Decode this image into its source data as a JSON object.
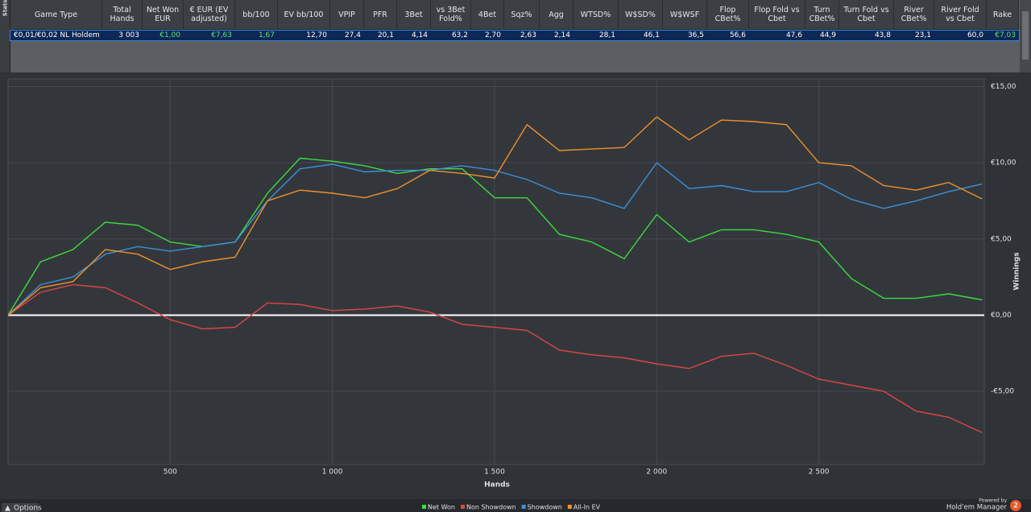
{
  "sidebar": {
    "label": "Stats"
  },
  "table": {
    "headers": [
      "Game Type",
      "Total Hands",
      "Net Won EUR",
      "€ EUR (EV adjusted)",
      "bb/100",
      "EV bb/100",
      "VPIP",
      "PFR",
      "3Bet",
      "vs 3Bet Fold%",
      "4Bet",
      "Sqz%",
      "Agg",
      "WTSD%",
      "W$SD%",
      "W$WSF",
      "Flop CBet%",
      "Flop Fold vs Cbet",
      "Turn CBet%",
      "Turn Fold vs Cbet",
      "River CBet%",
      "River Fold vs Cbet",
      "Rake"
    ],
    "rows": [
      [
        "€0,01/€0,02 NL Holdem",
        "3 003",
        "€1,00",
        "€7,63",
        "1,67",
        "12,70",
        "27,4",
        "20,1",
        "4,14",
        "63,2",
        "2,70",
        "2,63",
        "2,14",
        "28,1",
        "46,1",
        "36,5",
        "56,6",
        "47,6",
        "44,9",
        "43,8",
        "23,1",
        "60,0",
        "€7,03"
      ]
    ]
  },
  "chart_data": {
    "type": "line",
    "x_label": "Hands",
    "y_label": "Winnings",
    "x": [
      0,
      100,
      200,
      300,
      400,
      500,
      600,
      700,
      800,
      900,
      1000,
      1100,
      1200,
      1300,
      1400,
      1500,
      1600,
      1700,
      1800,
      1900,
      2000,
      2100,
      2200,
      2300,
      2400,
      2500,
      2600,
      2700,
      2800,
      2900,
      3003
    ],
    "series": [
      {
        "name": "Net Won",
        "color": "#3ddc3d",
        "values": [
          0,
          3.5,
          4.3,
          6.1,
          5.9,
          4.8,
          4.5,
          4.8,
          8.0,
          10.3,
          10.1,
          9.8,
          9.3,
          9.6,
          9.6,
          7.7,
          7.7,
          5.3,
          4.8,
          3.7,
          6.6,
          4.8,
          5.6,
          5.6,
          5.3,
          4.8,
          2.4,
          1.1,
          1.1,
          1.4,
          1.0
        ]
      },
      {
        "name": "Non Showdown",
        "color": "#e04545",
        "values": [
          0,
          1.5,
          2.0,
          1.8,
          0.8,
          -0.3,
          -0.9,
          -0.8,
          0.8,
          0.7,
          0.3,
          0.4,
          0.6,
          0.2,
          -0.6,
          -0.8,
          -1.0,
          -2.3,
          -2.6,
          -2.8,
          -3.2,
          -3.5,
          -2.7,
          -2.5,
          -3.3,
          -4.2,
          -4.6,
          -5.0,
          -6.3,
          -6.7,
          -7.7
        ]
      },
      {
        "name": "Showdown",
        "color": "#3d8fdc",
        "values": [
          0,
          2.0,
          2.5,
          4.0,
          4.5,
          4.2,
          4.5,
          4.8,
          7.5,
          9.6,
          9.9,
          9.4,
          9.5,
          9.5,
          9.8,
          9.5,
          8.9,
          8.0,
          7.7,
          7.0,
          10.0,
          8.3,
          8.5,
          8.1,
          8.1,
          8.7,
          7.6,
          7.0,
          7.5,
          8.1,
          8.6
        ]
      },
      {
        "name": "All-In EV",
        "color": "#f0902a",
        "values": [
          0,
          1.8,
          2.2,
          4.3,
          4.0,
          3.0,
          3.5,
          3.8,
          7.5,
          8.2,
          8.0,
          7.7,
          8.3,
          9.5,
          9.3,
          9.0,
          12.5,
          10.8,
          10.9,
          11.0,
          13.0,
          11.5,
          12.8,
          12.7,
          12.5,
          10.0,
          9.8,
          8.5,
          8.2,
          8.7,
          7.63
        ]
      }
    ],
    "xlim": [
      0,
      3010
    ],
    "ylim": [
      -9.8,
      15.5
    ],
    "xticks": [
      500,
      {
        "value": 1000,
        "label": "1 000"
      },
      {
        "value": 1500,
        "label": "1 500"
      },
      {
        "value": 2000,
        "label": "2 000"
      },
      {
        "value": 2500,
        "label": "2 500"
      }
    ],
    "yticks": [
      {
        "value": 15,
        "label": "€15,00"
      },
      {
        "value": 10,
        "label": "€10,00"
      },
      {
        "value": 5,
        "label": "€5,00"
      },
      {
        "value": 0,
        "label": "€0,00"
      },
      {
        "value": -5,
        "label": "-€5,00"
      }
    ],
    "grid": true
  },
  "footer": {
    "options": "Options",
    "powered_by": "Powered by",
    "brand": "Hold'em Manager",
    "logo": "2"
  }
}
